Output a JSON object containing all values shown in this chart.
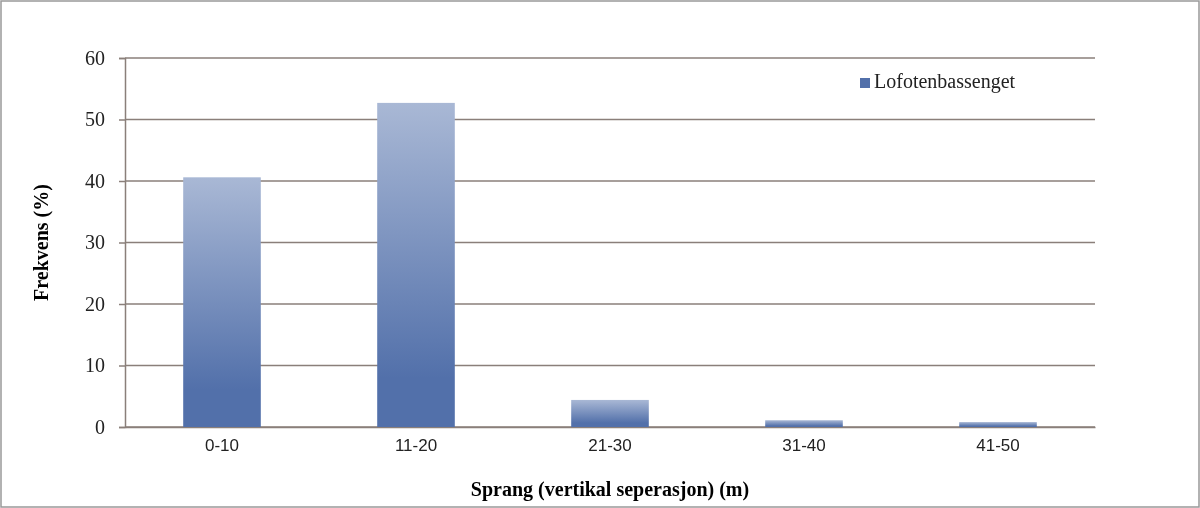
{
  "chart_data": {
    "type": "bar",
    "xlabel": "Sprang (vertikal seperasjon) (m)",
    "ylabel": "Frekvens (%)",
    "categories": [
      "0-10",
      "11-20",
      "21-30",
      "31-40",
      "41-50"
    ],
    "series": [
      {
        "name": "Lofotenbassenget",
        "color": "#5270aa",
        "values": [
          40.6,
          52.7,
          4.4,
          1.1,
          0.8
        ]
      }
    ],
    "ylim": [
      0,
      60
    ],
    "yticks": [
      0,
      10,
      20,
      30,
      40,
      50,
      60
    ],
    "grid": "y",
    "legend": "top right"
  }
}
